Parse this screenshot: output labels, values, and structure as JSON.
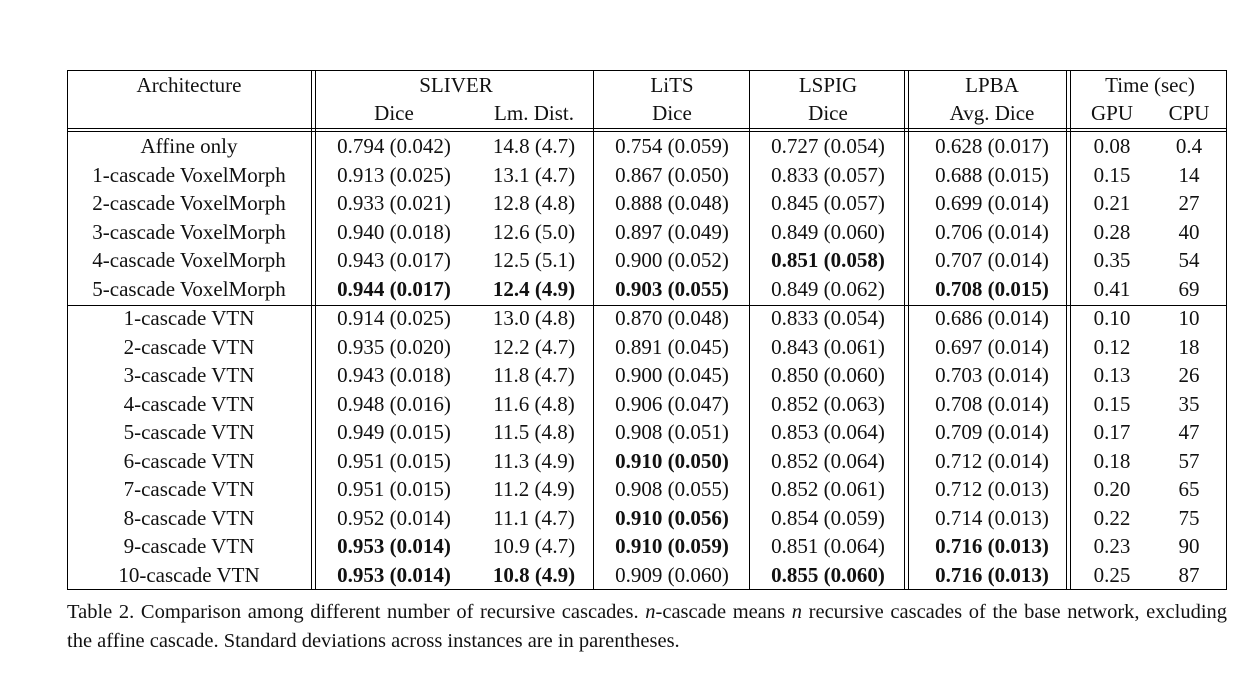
{
  "table": {
    "header1": [
      "Architecture",
      "SLIVER",
      "LiTS",
      "LSPIG",
      "LPBA",
      "Time (sec)"
    ],
    "header2": [
      "Dice",
      "Lm. Dist.",
      "Dice",
      "Dice",
      "Avg. Dice",
      "GPU",
      "CPU"
    ],
    "rows": [
      {
        "name": "Affine only",
        "sliver_dice": "0.794 (0.042)",
        "lm_dist": "14.8 (4.7)",
        "lits": "0.754 (0.059)",
        "lspig": "0.727 (0.054)",
        "lpba": "0.628 (0.017)",
        "gpu": "0.08",
        "cpu": "0.4",
        "bold": []
      },
      {
        "name": "1-cascade VoxelMorph",
        "sliver_dice": "0.913 (0.025)",
        "lm_dist": "13.1 (4.7)",
        "lits": "0.867 (0.050)",
        "lspig": "0.833 (0.057)",
        "lpba": "0.688 (0.015)",
        "gpu": "0.15",
        "cpu": "14",
        "bold": []
      },
      {
        "name": "2-cascade VoxelMorph",
        "sliver_dice": "0.933 (0.021)",
        "lm_dist": "12.8 (4.8)",
        "lits": "0.888 (0.048)",
        "lspig": "0.845 (0.057)",
        "lpba": "0.699 (0.014)",
        "gpu": "0.21",
        "cpu": "27",
        "bold": []
      },
      {
        "name": "3-cascade VoxelMorph",
        "sliver_dice": "0.940 (0.018)",
        "lm_dist": "12.6 (5.0)",
        "lits": "0.897 (0.049)",
        "lspig": "0.849 (0.060)",
        "lpba": "0.706 (0.014)",
        "gpu": "0.28",
        "cpu": "40",
        "bold": []
      },
      {
        "name": "4-cascade VoxelMorph",
        "sliver_dice": "0.943 (0.017)",
        "lm_dist": "12.5 (5.1)",
        "lits": "0.900 (0.052)",
        "lspig": "0.851 (0.058)",
        "lpba": "0.707 (0.014)",
        "gpu": "0.35",
        "cpu": "54",
        "bold": [
          "lspig"
        ]
      },
      {
        "name": "5-cascade VoxelMorph",
        "sliver_dice": "0.944 (0.017)",
        "lm_dist": "12.4 (4.9)",
        "lits": "0.903 (0.055)",
        "lspig": "0.849 (0.062)",
        "lpba": "0.708 (0.015)",
        "gpu": "0.41",
        "cpu": "69",
        "bold": [
          "sliver_dice",
          "lm_dist",
          "lits",
          "lpba"
        ]
      },
      {
        "name": "1-cascade VTN",
        "sliver_dice": "0.914 (0.025)",
        "lm_dist": "13.0 (4.8)",
        "lits": "0.870 (0.048)",
        "lspig": "0.833 (0.054)",
        "lpba": "0.686 (0.014)",
        "gpu": "0.10",
        "cpu": "10",
        "bold": []
      },
      {
        "name": "2-cascade VTN",
        "sliver_dice": "0.935 (0.020)",
        "lm_dist": "12.2 (4.7)",
        "lits": "0.891 (0.045)",
        "lspig": "0.843 (0.061)",
        "lpba": "0.697 (0.014)",
        "gpu": "0.12",
        "cpu": "18",
        "bold": []
      },
      {
        "name": "3-cascade VTN",
        "sliver_dice": "0.943 (0.018)",
        "lm_dist": "11.8 (4.7)",
        "lits": "0.900 (0.045)",
        "lspig": "0.850 (0.060)",
        "lpba": "0.703 (0.014)",
        "gpu": "0.13",
        "cpu": "26",
        "bold": []
      },
      {
        "name": "4-cascade VTN",
        "sliver_dice": "0.948 (0.016)",
        "lm_dist": "11.6 (4.8)",
        "lits": "0.906 (0.047)",
        "lspig": "0.852 (0.063)",
        "lpba": "0.708 (0.014)",
        "gpu": "0.15",
        "cpu": "35",
        "bold": []
      },
      {
        "name": "5-cascade VTN",
        "sliver_dice": "0.949 (0.015)",
        "lm_dist": "11.5 (4.8)",
        "lits": "0.908 (0.051)",
        "lspig": "0.853 (0.064)",
        "lpba": "0.709 (0.014)",
        "gpu": "0.17",
        "cpu": "47",
        "bold": []
      },
      {
        "name": "6-cascade VTN",
        "sliver_dice": "0.951 (0.015)",
        "lm_dist": "11.3 (4.9)",
        "lits": "0.910 (0.050)",
        "lspig": "0.852 (0.064)",
        "lpba": "0.712 (0.014)",
        "gpu": "0.18",
        "cpu": "57",
        "bold": [
          "lits"
        ]
      },
      {
        "name": "7-cascade VTN",
        "sliver_dice": "0.951 (0.015)",
        "lm_dist": "11.2 (4.9)",
        "lits": "0.908 (0.055)",
        "lspig": "0.852 (0.061)",
        "lpba": "0.712 (0.013)",
        "gpu": "0.20",
        "cpu": "65",
        "bold": []
      },
      {
        "name": "8-cascade VTN",
        "sliver_dice": "0.952 (0.014)",
        "lm_dist": "11.1 (4.7)",
        "lits": "0.910 (0.056)",
        "lspig": "0.854 (0.059)",
        "lpba": "0.714 (0.013)",
        "gpu": "0.22",
        "cpu": "75",
        "bold": [
          "lits"
        ]
      },
      {
        "name": "9-cascade VTN",
        "sliver_dice": "0.953 (0.014)",
        "lm_dist": "10.9 (4.7)",
        "lits": "0.910 (0.059)",
        "lspig": "0.851 (0.064)",
        "lpba": "0.716 (0.013)",
        "gpu": "0.23",
        "cpu": "90",
        "bold": [
          "sliver_dice",
          "lits",
          "lpba"
        ]
      },
      {
        "name": "10-cascade VTN",
        "sliver_dice": "0.953 (0.014)",
        "lm_dist": "10.8 (4.9)",
        "lits": "0.909 (0.060)",
        "lspig": "0.855 (0.060)",
        "lpba": "0.716 (0.013)",
        "gpu": "0.25",
        "cpu": "87",
        "bold": [
          "sliver_dice",
          "lm_dist",
          "lspig",
          "lpba"
        ]
      }
    ]
  },
  "caption": {
    "label": "Table 2.",
    "text_1": " Comparison among different number of recursive cascades. ",
    "n_italic_1": "n",
    "text_2": "-cascade means ",
    "n_italic_2": "n",
    "text_3": " recursive cascades of the base network, excluding the affine cascade. Standard deviations across instances are in parentheses."
  }
}
